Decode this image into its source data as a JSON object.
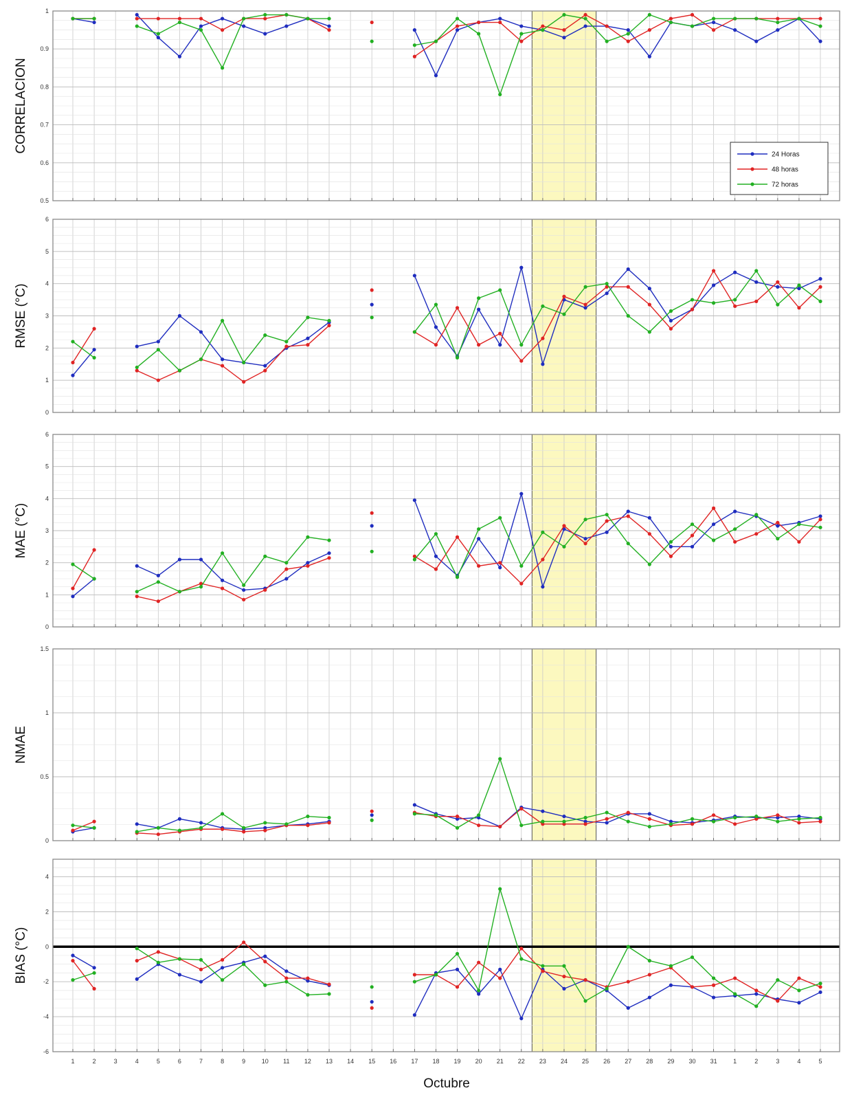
{
  "chart_data": {
    "type": "line",
    "xlabel": "Octubre",
    "x_tick_labels": [
      "1",
      "2",
      "3",
      "4",
      "5",
      "6",
      "7",
      "8",
      "9",
      "10",
      "11",
      "12",
      "13",
      "14",
      "15",
      "16",
      "17",
      "18",
      "19",
      "20",
      "21",
      "22",
      "23",
      "24",
      "25",
      "26",
      "27",
      "28",
      "29",
      "30",
      "31",
      "1",
      "2",
      "3",
      "4",
      "5"
    ],
    "highlight": {
      "from": "23",
      "to": "25",
      "color": "#fcf8bf"
    },
    "grid": true,
    "colors": {
      "24 Horas": "#1f2dbf",
      "48 horas": "#e02424",
      "72 horas": "#22b022"
    },
    "legend": {
      "placement": "top-right",
      "panel": 0,
      "entries": [
        "24 Horas",
        "48 horas",
        "72 horas"
      ]
    },
    "panels": [
      {
        "ylabel": "CORRELACION",
        "ylim": [
          0.5,
          1
        ],
        "yticks": [
          0.5,
          0.6,
          0.7,
          0.8,
          0.9,
          1
        ],
        "ytick_labels": [
          "0.5",
          "0.6",
          "0.7",
          "0.8",
          "0.9",
          "1"
        ],
        "series": [
          {
            "name": "24 Horas",
            "values": [
              0.98,
              0.97,
              null,
              0.99,
              0.93,
              0.88,
              0.96,
              0.98,
              0.96,
              0.94,
              0.96,
              0.98,
              0.96,
              null,
              null,
              null,
              0.95,
              0.83,
              0.95,
              0.97,
              0.98,
              0.96,
              0.95,
              0.93,
              0.96,
              0.96,
              0.95,
              0.88,
              0.97,
              0.96,
              0.97,
              0.95,
              0.92,
              0.95,
              0.98,
              0.92
            ]
          },
          {
            "name": "48 horas",
            "values": [
              0.98,
              0.98,
              null,
              0.98,
              0.98,
              0.98,
              0.98,
              0.95,
              0.98,
              0.98,
              0.99,
              0.98,
              0.95,
              null,
              0.97,
              null,
              0.88,
              0.92,
              0.96,
              0.97,
              0.97,
              0.92,
              0.96,
              0.95,
              0.99,
              0.96,
              0.92,
              0.95,
              0.98,
              0.99,
              0.95,
              0.98,
              0.98,
              0.98,
              0.98,
              0.98
            ]
          },
          {
            "name": "72 horas",
            "values": [
              0.98,
              0.98,
              null,
              0.96,
              0.94,
              0.97,
              0.95,
              0.85,
              0.98,
              0.99,
              0.99,
              0.98,
              0.98,
              null,
              0.92,
              null,
              0.91,
              0.92,
              0.98,
              0.94,
              0.78,
              0.94,
              0.95,
              0.99,
              0.98,
              0.92,
              0.94,
              0.99,
              0.97,
              0.96,
              0.98,
              0.98,
              0.98,
              0.97,
              0.98,
              0.96
            ]
          }
        ]
      },
      {
        "ylabel": "RMSE  (°C)",
        "ylim": [
          0,
          6
        ],
        "yticks": [
          0,
          1,
          2,
          3,
          4,
          5,
          6
        ],
        "ytick_labels": [
          "0",
          "1",
          "2",
          "3",
          "4",
          "5",
          "6"
        ],
        "series": [
          {
            "name": "24 Horas",
            "values": [
              1.15,
              1.95,
              null,
              2.05,
              2.2,
              3.0,
              2.5,
              1.65,
              1.55,
              1.45,
              2.0,
              2.3,
              2.8,
              null,
              3.35,
              null,
              4.25,
              2.65,
              1.75,
              3.2,
              2.1,
              4.5,
              1.5,
              3.5,
              3.25,
              3.7,
              4.45,
              3.85,
              2.85,
              3.2,
              3.95,
              4.35,
              4.05,
              3.9,
              3.85,
              4.15
            ]
          },
          {
            "name": "48 horas",
            "values": [
              1.55,
              2.6,
              null,
              1.3,
              1.0,
              1.3,
              1.65,
              1.45,
              0.95,
              1.3,
              2.05,
              2.1,
              2.7,
              null,
              3.8,
              null,
              2.5,
              2.1,
              3.25,
              2.1,
              2.45,
              1.6,
              2.3,
              3.6,
              3.35,
              3.9,
              3.9,
              3.35,
              2.6,
              3.2,
              4.4,
              3.3,
              3.45,
              4.05,
              3.25,
              3.9
            ]
          },
          {
            "name": "72 horas",
            "values": [
              2.2,
              1.7,
              null,
              1.4,
              1.95,
              1.3,
              1.65,
              2.85,
              1.55,
              2.4,
              2.2,
              2.95,
              2.85,
              null,
              2.95,
              null,
              2.5,
              3.35,
              1.7,
              3.55,
              3.8,
              2.1,
              3.3,
              3.05,
              3.9,
              4.0,
              3.0,
              2.5,
              3.15,
              3.5,
              3.4,
              3.5,
              4.4,
              3.35,
              3.95,
              3.45
            ]
          }
        ]
      },
      {
        "ylabel": "MAE  (°C)",
        "ylim": [
          0,
          6
        ],
        "yticks": [
          0,
          1,
          2,
          3,
          4,
          5,
          6
        ],
        "ytick_labels": [
          "0",
          "1",
          "2",
          "3",
          "4",
          "5",
          "6"
        ],
        "series": [
          {
            "name": "24 Horas",
            "values": [
              0.95,
              1.5,
              null,
              1.9,
              1.6,
              2.1,
              2.1,
              1.45,
              1.15,
              1.2,
              1.5,
              2.0,
              2.3,
              null,
              3.15,
              null,
              3.95,
              2.2,
              1.6,
              2.75,
              1.85,
              4.15,
              1.25,
              3.05,
              2.75,
              2.95,
              3.6,
              3.4,
              2.5,
              2.5,
              3.2,
              3.6,
              3.45,
              3.15,
              3.25,
              3.45
            ]
          },
          {
            "name": "48 horas",
            "values": [
              1.2,
              2.4,
              null,
              0.95,
              0.8,
              1.1,
              1.35,
              1.2,
              0.85,
              1.15,
              1.8,
              1.9,
              2.15,
              null,
              3.55,
              null,
              2.2,
              1.8,
              2.8,
              1.9,
              2.0,
              1.35,
              2.1,
              3.15,
              2.6,
              3.3,
              3.45,
              2.9,
              2.2,
              2.85,
              3.7,
              2.65,
              2.9,
              3.25,
              2.65,
              3.35
            ]
          },
          {
            "name": "72 horas",
            "values": [
              1.95,
              1.5,
              null,
              1.1,
              1.4,
              1.1,
              1.25,
              2.3,
              1.3,
              2.2,
              2.0,
              2.8,
              2.7,
              null,
              2.35,
              null,
              2.1,
              2.9,
              1.55,
              3.05,
              3.4,
              1.9,
              2.95,
              2.5,
              3.35,
              3.5,
              2.6,
              1.95,
              2.65,
              3.2,
              2.7,
              3.05,
              3.5,
              2.75,
              3.2,
              3.1
            ]
          }
        ]
      },
      {
        "ylabel": "NMAE",
        "ylim": [
          0,
          1.5
        ],
        "yticks": [
          0,
          0.5,
          1,
          1.5
        ],
        "ytick_labels": [
          "0",
          "0.5",
          "1",
          "1.5"
        ],
        "series": [
          {
            "name": "24 Horas",
            "values": [
              0.07,
              0.1,
              null,
              0.13,
              0.1,
              0.17,
              0.14,
              0.1,
              0.09,
              0.1,
              0.12,
              0.13,
              0.15,
              null,
              0.2,
              null,
              0.28,
              0.21,
              0.17,
              0.18,
              0.11,
              0.26,
              0.23,
              0.19,
              0.15,
              0.14,
              0.21,
              0.21,
              0.15,
              0.14,
              0.16,
              0.19,
              0.18,
              0.18,
              0.19,
              0.17
            ]
          },
          {
            "name": "48 horas",
            "values": [
              0.08,
              0.15,
              null,
              0.06,
              0.05,
              0.07,
              0.09,
              0.09,
              0.07,
              0.08,
              0.12,
              0.12,
              0.14,
              null,
              0.23,
              null,
              0.22,
              0.19,
              0.19,
              0.12,
              0.11,
              0.25,
              0.13,
              0.13,
              0.13,
              0.17,
              0.22,
              0.17,
              0.12,
              0.13,
              0.2,
              0.13,
              0.17,
              0.2,
              0.14,
              0.15
            ]
          },
          {
            "name": "72 horas",
            "values": [
              0.12,
              0.1,
              null,
              0.07,
              0.1,
              0.08,
              0.1,
              0.21,
              0.1,
              0.14,
              0.13,
              0.19,
              0.18,
              null,
              0.16,
              null,
              0.21,
              0.2,
              0.1,
              0.2,
              0.64,
              0.12,
              0.15,
              0.15,
              0.18,
              0.22,
              0.15,
              0.11,
              0.13,
              0.17,
              0.15,
              0.18,
              0.19,
              0.15,
              0.17,
              0.18
            ]
          }
        ]
      },
      {
        "ylabel": "BIAS  (°C)",
        "ylim": [
          -6,
          5
        ],
        "yticks": [
          -6,
          -4,
          -2,
          0,
          2,
          4
        ],
        "ytick_labels": [
          "-6",
          "-4",
          "-2",
          "0",
          "2",
          "4"
        ],
        "zero_line": true,
        "series": [
          {
            "name": "24 Horas",
            "values": [
              -0.5,
              -1.2,
              null,
              -1.85,
              -1.0,
              -1.6,
              -2.0,
              -1.2,
              -0.9,
              -0.55,
              -1.4,
              -1.95,
              -2.2,
              null,
              -3.15,
              null,
              -3.9,
              -1.5,
              -1.3,
              -2.7,
              -1.3,
              -4.1,
              -1.3,
              -2.4,
              -1.9,
              -2.5,
              -3.5,
              -2.9,
              -2.2,
              -2.3,
              -2.9,
              -2.8,
              -2.7,
              -3.0,
              -3.2,
              -2.6
            ]
          },
          {
            "name": "48 horas",
            "values": [
              -0.8,
              -2.4,
              null,
              -0.8,
              -0.3,
              -0.7,
              -1.3,
              -0.75,
              0.25,
              -0.85,
              -1.8,
              -1.8,
              -2.15,
              null,
              -3.5,
              null,
              -1.6,
              -1.6,
              -2.3,
              -0.9,
              -1.8,
              -0.1,
              -1.4,
              -1.7,
              -1.9,
              -2.3,
              -2.0,
              -1.6,
              -1.2,
              -2.3,
              -2.2,
              -1.8,
              -2.5,
              -3.1,
              -1.8,
              -2.3
            ]
          },
          {
            "name": "72 horas",
            "values": [
              -1.9,
              -1.5,
              null,
              -0.1,
              -0.9,
              -0.7,
              -0.75,
              -1.9,
              -1.0,
              -2.2,
              -2.0,
              -2.75,
              -2.7,
              null,
              -2.3,
              null,
              -2.0,
              -1.6,
              -0.4,
              -2.5,
              3.3,
              -0.7,
              -1.1,
              -1.1,
              -3.1,
              -2.4,
              0.0,
              -0.8,
              -1.1,
              -0.6,
              -1.8,
              -2.7,
              -3.4,
              -1.9,
              -2.5,
              -2.1
            ]
          }
        ]
      }
    ]
  }
}
